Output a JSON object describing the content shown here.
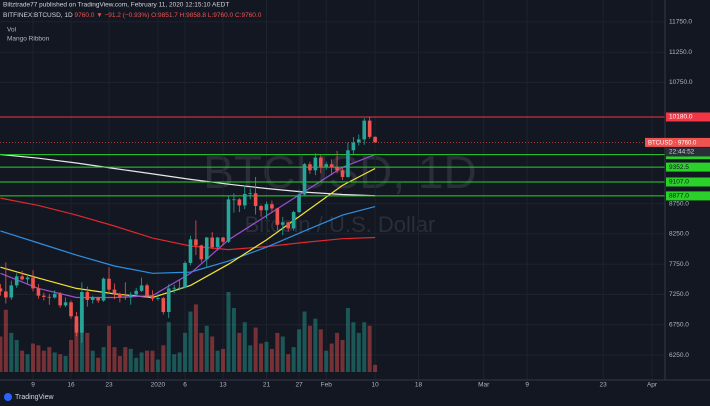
{
  "header": {
    "publisher": "Biltztrade77 published on TradingView.com, February 11, 2020 12:15:10 AEDT",
    "symbol": "BITFINEX:BTCUSD, 1D",
    "last": "9760.0",
    "change": "▼ −91.2 (−0.93%)",
    "ohlc": "O:9851.7 H:9858.8 L:9760.0 C:9760.0",
    "indicators": [
      "Vol",
      "Mango Ribbon"
    ]
  },
  "footer": "TradingView",
  "chart_data": {
    "type": "candlestick",
    "watermark": "BTCUSD, 1D",
    "watermark_subtitle": "Bitcoin / U.S. Dollar",
    "x": [
      "2019-12-03",
      "2019-12-04",
      "2019-12-05",
      "2019-12-06",
      "2019-12-07",
      "2019-12-08",
      "2019-12-09",
      "2019-12-10",
      "2019-12-11",
      "2019-12-12",
      "2019-12-13",
      "2019-12-14",
      "2019-12-15",
      "2019-12-16",
      "2019-12-17",
      "2019-12-18",
      "2019-12-19",
      "2019-12-20",
      "2019-12-21",
      "2019-12-22",
      "2019-12-23",
      "2019-12-24",
      "2019-12-25",
      "2019-12-26",
      "2019-12-27",
      "2019-12-28",
      "2019-12-29",
      "2019-12-30",
      "2019-12-31",
      "2020-01-01",
      "2020-01-02",
      "2020-01-03",
      "2020-01-04",
      "2020-01-05",
      "2020-01-06",
      "2020-01-07",
      "2020-01-08",
      "2020-01-09",
      "2020-01-10",
      "2020-01-11",
      "2020-01-12",
      "2020-01-13",
      "2020-01-14",
      "2020-01-15",
      "2020-01-16",
      "2020-01-17",
      "2020-01-18",
      "2020-01-19",
      "2020-01-20",
      "2020-01-21",
      "2020-01-22",
      "2020-01-23",
      "2020-01-24",
      "2020-01-25",
      "2020-01-26",
      "2020-01-27",
      "2020-01-28",
      "2020-01-29",
      "2020-01-30",
      "2020-01-31",
      "2020-02-01",
      "2020-02-02",
      "2020-02-03",
      "2020-02-04",
      "2020-02-05",
      "2020-02-06",
      "2020-02-07",
      "2020-02-08",
      "2020-02-09",
      "2020-02-10"
    ],
    "open": [
      7350,
      7300,
      7200,
      7400,
      7550,
      7500,
      7530,
      7350,
      7230,
      7210,
      7200,
      7260,
      7070,
      7120,
      6890,
      6620,
      7290,
      7160,
      7200,
      7150,
      7510,
      7330,
      7260,
      7210,
      7200,
      7250,
      7310,
      7400,
      7230,
      7180,
      7190,
      6960,
      7350,
      7360,
      7360,
      7770,
      8160,
      8060,
      7830,
      8190,
      8030,
      8190,
      8120,
      8820,
      8820,
      8720,
      8910,
      8920,
      8710,
      8640,
      8740,
      8670,
      8400,
      8440,
      8340,
      8610,
      8900,
      9400,
      9300,
      9510,
      9360,
      9400,
      9350,
      9300,
      9190,
      9630,
      9760,
      9810,
      10120,
      9851.7
    ],
    "high": [
      7420,
      7780,
      7480,
      7600,
      7640,
      7590,
      7650,
      7420,
      7280,
      7260,
      7320,
      7290,
      7200,
      7150,
      6960,
      7450,
      7380,
      7230,
      7210,
      7530,
      7700,
      7430,
      7280,
      7450,
      7290,
      7360,
      7530,
      7430,
      7320,
      7260,
      7210,
      7420,
      7410,
      7500,
      7800,
      8220,
      8470,
      8070,
      8200,
      8280,
      8200,
      8200,
      8880,
      8920,
      8840,
      9050,
      9000,
      9190,
      8730,
      8780,
      8800,
      8680,
      8530,
      8450,
      8630,
      8980,
      9420,
      9440,
      9580,
      9550,
      9440,
      9480,
      9620,
      9350,
      9760,
      9850,
      9890,
      10160,
      10180,
      9858.8
    ],
    "low": [
      7230,
      7100,
      7160,
      7360,
      7480,
      7420,
      7300,
      7180,
      7150,
      7080,
      7180,
      7030,
      7040,
      6850,
      6560,
      6450,
      7050,
      7100,
      7110,
      7130,
      7270,
      7170,
      7120,
      7160,
      7080,
      7240,
      7290,
      7200,
      7140,
      7150,
      6920,
      6860,
      7270,
      7320,
      7350,
      7730,
      7900,
      7780,
      7700,
      8000,
      7980,
      8060,
      8100,
      8600,
      8610,
      8660,
      8820,
      8570,
      8540,
      8500,
      8620,
      8310,
      8230,
      8290,
      8300,
      8590,
      8880,
      9240,
      9220,
      9250,
      9310,
      9220,
      9250,
      9140,
      9180,
      9560,
      9710,
      9720,
      9820,
      9760.0
    ],
    "close": [
      7300,
      7200,
      7400,
      7550,
      7500,
      7530,
      7350,
      7230,
      7210,
      7200,
      7260,
      7070,
      7120,
      6890,
      6620,
      7290,
      7160,
      7200,
      7150,
      7510,
      7330,
      7260,
      7210,
      7200,
      7250,
      7310,
      7400,
      7230,
      7180,
      7190,
      6960,
      7350,
      7360,
      7360,
      7770,
      8160,
      8060,
      7830,
      8190,
      8030,
      8190,
      8120,
      8820,
      8820,
      8720,
      8910,
      8920,
      8710,
      8640,
      8740,
      8670,
      8400,
      8440,
      8340,
      8610,
      8900,
      9400,
      9300,
      9510,
      9360,
      9400,
      9350,
      9300,
      9190,
      9630,
      9760,
      9810,
      10120,
      9851.7,
      9760.0
    ],
    "volume": [
      20,
      35,
      22,
      18,
      12,
      10,
      16,
      15,
      12,
      14,
      11,
      10,
      9,
      18,
      28,
      40,
      22,
      12,
      8,
      14,
      26,
      14,
      9,
      14,
      13,
      8,
      11,
      12,
      12,
      7,
      15,
      28,
      10,
      11,
      22,
      34,
      38,
      22,
      26,
      20,
      12,
      13,
      45,
      36,
      22,
      28,
      15,
      25,
      16,
      17,
      13,
      22,
      20,
      10,
      14,
      24,
      34,
      26,
      30,
      24,
      12,
      16,
      22,
      18,
      36,
      28,
      22,
      28,
      26,
      4
    ],
    "up_color": "#26a69a",
    "down_color": "#ef5350",
    "lines": [
      {
        "color": "#e8e8e8",
        "x": [
          "2019-12-03",
          "2019-12-10",
          "2019-12-17",
          "2019-12-24",
          "2019-12-31",
          "2020-01-07",
          "2020-01-14",
          "2020-01-21",
          "2020-01-28",
          "2020-02-04",
          "2020-02-10"
        ],
        "values": [
          9560,
          9500,
          9420,
          9330,
          9240,
          9150,
          9070,
          9000,
          8940,
          8900,
          8880
        ]
      },
      {
        "color": "#e0282e",
        "x": [
          "2019-12-03",
          "2019-12-10",
          "2019-12-17",
          "2019-12-24",
          "2019-12-31",
          "2020-01-07",
          "2020-01-14",
          "2020-01-21",
          "2020-01-28",
          "2020-02-04",
          "2020-02-10"
        ],
        "values": [
          8840,
          8720,
          8560,
          8380,
          8180,
          8050,
          7990,
          8040,
          8110,
          8170,
          8190
        ]
      },
      {
        "color": "#2f8fe0",
        "x": [
          "2019-12-03",
          "2019-12-10",
          "2019-12-17",
          "2019-12-24",
          "2019-12-31",
          "2020-01-07",
          "2020-01-14",
          "2020-01-21",
          "2020-01-28",
          "2020-02-04",
          "2020-02-10"
        ],
        "values": [
          8300,
          8100,
          7900,
          7720,
          7600,
          7620,
          7800,
          8030,
          8300,
          8560,
          8700
        ]
      },
      {
        "color": "#f2e33a",
        "x": [
          "2019-12-03",
          "2019-12-10",
          "2019-12-17",
          "2019-12-24",
          "2019-12-31",
          "2020-01-07",
          "2020-01-14",
          "2020-01-21",
          "2020-01-28",
          "2020-02-04",
          "2020-02-10"
        ],
        "values": [
          7700,
          7520,
          7350,
          7260,
          7200,
          7400,
          7750,
          8150,
          8600,
          9050,
          9330
        ]
      },
      {
        "color": "#9c4fd6",
        "x": [
          "2019-12-03",
          "2019-12-10",
          "2019-12-17",
          "2019-12-24",
          "2019-12-31",
          "2020-01-07",
          "2020-01-14",
          "2020-01-21",
          "2020-01-28",
          "2020-02-04",
          "2020-02-10"
        ],
        "values": [
          7600,
          7350,
          7200,
          7200,
          7230,
          7600,
          8150,
          8550,
          8950,
          9350,
          9560
        ]
      }
    ],
    "hlines": [
      {
        "value": 10180,
        "label": "10180.0",
        "color": "#f23645"
      },
      {
        "value": 9558.2,
        "label": "9558.2",
        "color": "#29d129"
      },
      {
        "value": 9352.5,
        "label": "9352.5",
        "color": "#29d129"
      },
      {
        "value": 9107,
        "label": "9107.0",
        "color": "#29d129"
      },
      {
        "value": 8877,
        "label": "8877.0",
        "color": "#29d129"
      }
    ],
    "last_price": {
      "symbol": "BTCUSD",
      "value": 9760,
      "label": "9760.0",
      "countdown": "22:44:52"
    },
    "ylim": [
      5970,
      11880
    ],
    "yticks": [
      {
        "value": 6250,
        "label": "6250.0"
      },
      {
        "value": 6750,
        "label": "6750.0"
      },
      {
        "value": 7250,
        "label": "7250.0"
      },
      {
        "value": 7750,
        "label": "7750.0"
      },
      {
        "value": 8250,
        "label": "8250.0"
      },
      {
        "value": 8750,
        "label": "8750.0"
      },
      {
        "value": 10750,
        "label": "10750.0"
      },
      {
        "value": 11250,
        "label": "11250.0"
      },
      {
        "value": 11750,
        "label": "11750.0"
      }
    ],
    "xticks": [
      {
        "value": "2019-12-09",
        "label": "9"
      },
      {
        "value": "2019-12-16",
        "label": "16"
      },
      {
        "value": "2019-12-23",
        "label": "23"
      },
      {
        "value": "2020-01-01",
        "label": "2020"
      },
      {
        "value": "2020-01-06",
        "label": "6"
      },
      {
        "value": "2020-01-13",
        "label": "13"
      },
      {
        "value": "2020-01-21",
        "label": "21"
      },
      {
        "value": "2020-01-27",
        "label": "27"
      },
      {
        "value": "2020-02-01",
        "label": "Feb"
      },
      {
        "value": "2020-02-10",
        "label": "10"
      },
      {
        "value": "2020-02-18",
        "label": "18"
      },
      {
        "value": "2020-03-01",
        "label": "Mar"
      },
      {
        "value": "2020-03-09",
        "label": "9"
      },
      {
        "value": "2020-03-23",
        "label": "23"
      },
      {
        "value": "2020-04-01",
        "label": "Apr"
      }
    ],
    "grid": true
  }
}
